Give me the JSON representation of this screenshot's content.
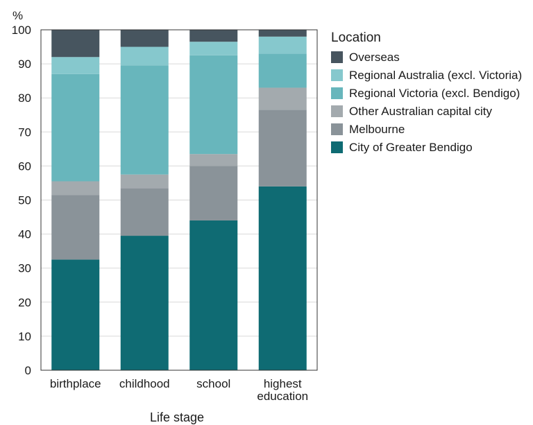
{
  "chart_data": {
    "type": "bar",
    "stacked": true,
    "y_unit_label": "%",
    "xlabel": "Life stage",
    "ylabel": "",
    "ylim": [
      0,
      100
    ],
    "yticks": [
      0,
      10,
      20,
      30,
      40,
      50,
      60,
      70,
      80,
      90,
      100
    ],
    "grid": true,
    "legend_title": "Location",
    "legend_position": "top-right",
    "categories": [
      [
        "birthplace"
      ],
      [
        "childhood"
      ],
      [
        "school"
      ],
      [
        "highest",
        "education"
      ]
    ],
    "series": [
      {
        "name": "City of Greater Bendigo",
        "color": "#0f6b73",
        "values": [
          32.5,
          39.5,
          44.0,
          54.0
        ]
      },
      {
        "name": "Melbourne",
        "color": "#8a9399",
        "values": [
          19.0,
          14.0,
          16.0,
          22.5
        ]
      },
      {
        "name": "Other Australian capital city",
        "color": "#a3aaae",
        "values": [
          4.0,
          4.0,
          3.5,
          6.5
        ]
      },
      {
        "name": "Regional Victoria (excl. Bendigo)",
        "color": "#68b6bc",
        "values": [
          31.5,
          32.0,
          29.0,
          10.0
        ]
      },
      {
        "name": "Regional Australia (excl. Victoria)",
        "color": "#86c8cd",
        "values": [
          5.0,
          5.5,
          4.0,
          5.0
        ]
      },
      {
        "name": "Overseas",
        "color": "#47555f",
        "values": [
          8.0,
          5.0,
          3.5,
          2.0
        ]
      }
    ]
  }
}
